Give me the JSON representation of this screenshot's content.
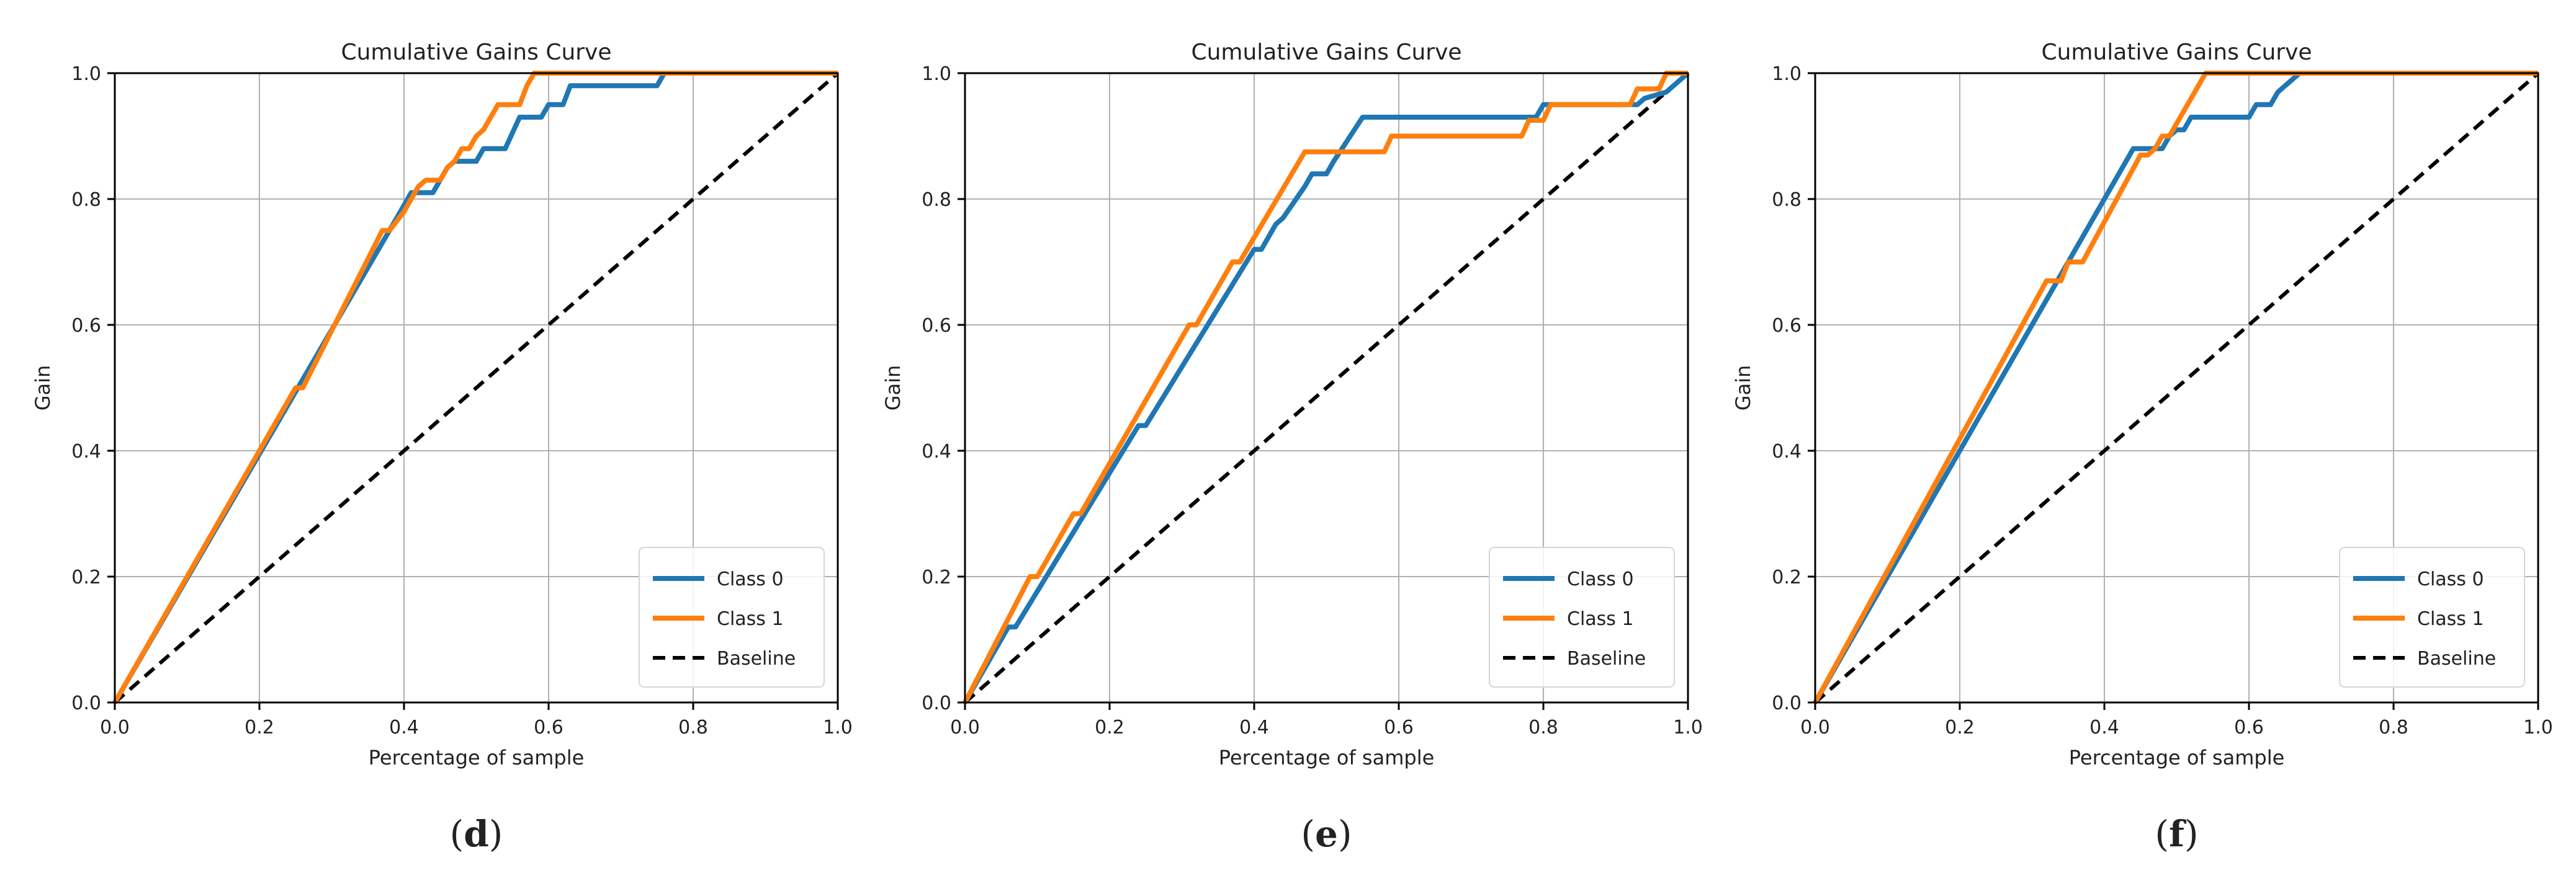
{
  "colors": {
    "class0": "#1f77b4",
    "class1": "#ff7f0e",
    "baseline": "#000000",
    "grid": "#b0b0b0",
    "axis": "#000000"
  },
  "chart_data": [
    {
      "type": "line",
      "panel_label": "(d)",
      "panel_letter": "d",
      "title": "Cumulative Gains Curve",
      "xlabel": "Percentage of sample",
      "ylabel": "Gain",
      "xlim": [
        0,
        1
      ],
      "ylim": [
        0,
        1
      ],
      "xticks": [
        "0.0",
        "0.2",
        "0.4",
        "0.6",
        "0.8",
        "1.0"
      ],
      "yticks": [
        "0.0",
        "0.2",
        "0.4",
        "0.6",
        "0.8",
        "1.0"
      ],
      "grid": true,
      "legend": "bottom-right",
      "series": [
        {
          "name": "Class 0",
          "x": [
            0,
            0.39,
            0.41,
            0.44,
            0.46,
            0.47,
            0.5,
            0.51,
            0.52,
            0.54,
            0.56,
            0.57,
            0.59,
            0.6,
            0.62,
            0.63,
            0.75,
            0.76,
            1.0
          ],
          "y": [
            0,
            0.77,
            0.81,
            0.81,
            0.85,
            0.86,
            0.86,
            0.88,
            0.88,
            0.88,
            0.93,
            0.93,
            0.93,
            0.95,
            0.95,
            0.98,
            0.98,
            1.0,
            1.0
          ]
        },
        {
          "name": "Class 1",
          "x": [
            0,
            0.25,
            0.26,
            0.37,
            0.38,
            0.4,
            0.41,
            0.42,
            0.43,
            0.45,
            0.46,
            0.47,
            0.48,
            0.49,
            0.5,
            0.51,
            0.52,
            0.53,
            0.54,
            0.56,
            0.57,
            0.58,
            1.0
          ],
          "y": [
            0,
            0.5,
            0.5,
            0.75,
            0.75,
            0.78,
            0.8,
            0.82,
            0.83,
            0.83,
            0.85,
            0.86,
            0.88,
            0.88,
            0.9,
            0.91,
            0.93,
            0.95,
            0.95,
            0.95,
            0.98,
            1.0,
            1.0
          ]
        },
        {
          "name": "Baseline",
          "x": [
            0,
            1
          ],
          "y": [
            0,
            1
          ]
        }
      ]
    },
    {
      "type": "line",
      "panel_label": "(e)",
      "panel_letter": "e",
      "title": "Cumulative Gains Curve",
      "xlabel": "Percentage of sample",
      "ylabel": "Gain",
      "xlim": [
        0,
        1
      ],
      "ylim": [
        0,
        1
      ],
      "xticks": [
        "0.0",
        "0.2",
        "0.4",
        "0.6",
        "0.8",
        "1.0"
      ],
      "yticks": [
        "0.0",
        "0.2",
        "0.4",
        "0.6",
        "0.8",
        "1.0"
      ],
      "grid": true,
      "legend": "bottom-right",
      "series": [
        {
          "name": "Class 0",
          "x": [
            0,
            0.06,
            0.07,
            0.24,
            0.25,
            0.4,
            0.41,
            0.43,
            0.44,
            0.47,
            0.48,
            0.5,
            0.51,
            0.55,
            0.79,
            0.8,
            0.93,
            0.94,
            0.97,
            0.98,
            1.0
          ],
          "y": [
            0,
            0.12,
            0.12,
            0.44,
            0.44,
            0.72,
            0.72,
            0.76,
            0.77,
            0.82,
            0.84,
            0.84,
            0.86,
            0.93,
            0.93,
            0.95,
            0.95,
            0.96,
            0.97,
            0.98,
            1.0
          ]
        },
        {
          "name": "Class 1",
          "x": [
            0,
            0.09,
            0.1,
            0.15,
            0.16,
            0.31,
            0.32,
            0.37,
            0.38,
            0.47,
            0.48,
            0.58,
            0.59,
            0.77,
            0.78,
            0.8,
            0.81,
            0.92,
            0.93,
            0.96,
            0.97,
            1.0
          ],
          "y": [
            0,
            0.2,
            0.2,
            0.3,
            0.3,
            0.6,
            0.6,
            0.7,
            0.7,
            0.875,
            0.875,
            0.875,
            0.9,
            0.9,
            0.925,
            0.925,
            0.95,
            0.95,
            0.975,
            0.975,
            1.0,
            1.0
          ]
        },
        {
          "name": "Baseline",
          "x": [
            0,
            1
          ],
          "y": [
            0,
            1
          ]
        }
      ]
    },
    {
      "type": "line",
      "panel_label": "(f)",
      "panel_letter": "f",
      "title": "Cumulative Gains Curve",
      "xlabel": "Percentage of sample",
      "ylabel": "Gain",
      "xlim": [
        0,
        1
      ],
      "ylim": [
        0,
        1
      ],
      "xticks": [
        "0.0",
        "0.2",
        "0.4",
        "0.6",
        "0.8",
        "1.0"
      ],
      "yticks": [
        "0.0",
        "0.2",
        "0.4",
        "0.6",
        "0.8",
        "1.0"
      ],
      "grid": true,
      "legend": "bottom-right",
      "series": [
        {
          "name": "Class 0",
          "x": [
            0,
            0.44,
            0.45,
            0.47,
            0.48,
            0.49,
            0.5,
            0.51,
            0.52,
            0.54,
            0.6,
            0.61,
            0.63,
            0.64,
            0.67,
            1.0
          ],
          "y": [
            0,
            0.88,
            0.88,
            0.88,
            0.88,
            0.9,
            0.91,
            0.91,
            0.93,
            0.93,
            0.93,
            0.95,
            0.95,
            0.97,
            1.0,
            1.0
          ]
        },
        {
          "name": "Class 1",
          "x": [
            0,
            0.32,
            0.33,
            0.34,
            0.35,
            0.36,
            0.37,
            0.45,
            0.46,
            0.47,
            0.48,
            0.49,
            0.5,
            0.54,
            1.0
          ],
          "y": [
            0,
            0.67,
            0.67,
            0.67,
            0.7,
            0.7,
            0.7,
            0.87,
            0.87,
            0.88,
            0.9,
            0.9,
            0.92,
            1.0,
            1.0
          ]
        },
        {
          "name": "Baseline",
          "x": [
            0,
            1
          ],
          "y": [
            0,
            1
          ]
        }
      ]
    }
  ]
}
